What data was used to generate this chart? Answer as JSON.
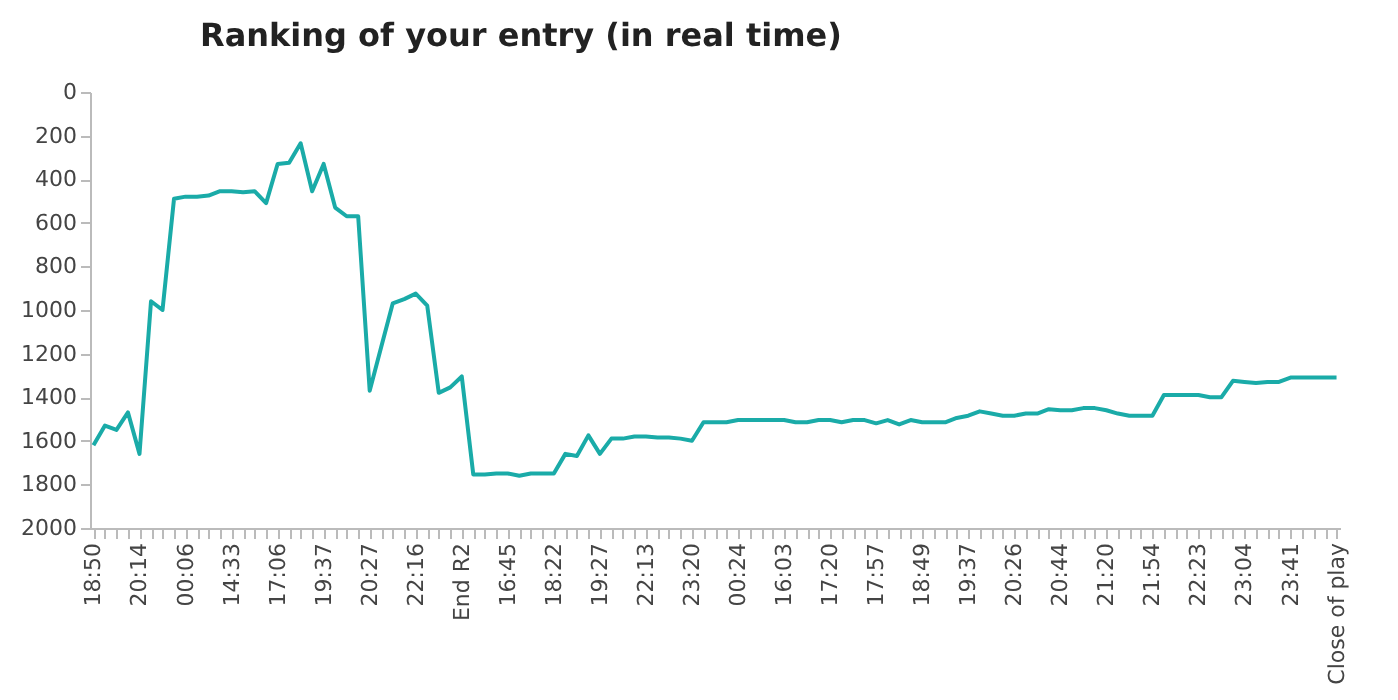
{
  "chart_data": {
    "type": "line",
    "title": "Ranking of your entry (in real time)",
    "categories": [
      "18:50",
      null,
      null,
      null,
      "20:14",
      null,
      null,
      null,
      "00:06",
      null,
      null,
      null,
      "14:33",
      null,
      null,
      null,
      "17:06",
      null,
      null,
      null,
      "19:37",
      null,
      null,
      null,
      "20:27",
      null,
      null,
      null,
      "22:16",
      null,
      null,
      null,
      "End R2",
      null,
      null,
      null,
      "16:45",
      null,
      null,
      null,
      "18:22",
      null,
      null,
      null,
      "19:27",
      null,
      null,
      null,
      "22:13",
      null,
      null,
      null,
      "23:20",
      null,
      null,
      null,
      "00:24",
      null,
      null,
      null,
      "16:03",
      null,
      null,
      null,
      "17:20",
      null,
      null,
      null,
      "17:57",
      null,
      null,
      null,
      "18:49",
      null,
      null,
      null,
      "19:37",
      null,
      null,
      null,
      "20:26",
      null,
      null,
      null,
      "20:44",
      null,
      null,
      null,
      "21:20",
      null,
      null,
      null,
      "21:54",
      null,
      null,
      null,
      "22:23",
      null,
      null,
      null,
      "23:04",
      null,
      null,
      null,
      "23:41",
      null,
      null,
      null,
      "Close of play"
    ],
    "series": [
      {
        "color": "#1aaba8",
        "values": [
          1620,
          1530,
          1550,
          1470,
          1660,
          960,
          1000,
          490,
          480,
          480,
          475,
          455,
          455,
          460,
          455,
          510,
          330,
          325,
          235,
          455,
          330,
          530,
          570,
          570,
          1370,
          1170,
          970,
          950,
          925,
          980,
          1380,
          1355,
          1305,
          1755,
          1755,
          1750,
          1750,
          1760,
          1750,
          1750,
          1750,
          1660,
          1670,
          1575,
          1660,
          1590,
          1590,
          1580,
          1580,
          1585,
          1585,
          1590,
          1600,
          1515,
          1515,
          1515,
          1505,
          1505,
          1505,
          1505,
          1505,
          1515,
          1515,
          1505,
          1505,
          1515,
          1505,
          1505,
          1520,
          1505,
          1525,
          1505,
          1515,
          1515,
          1515,
          1495,
          1485,
          1465,
          1475,
          1485,
          1485,
          1475,
          1475,
          1455,
          1460,
          1460,
          1450,
          1450,
          1460,
          1475,
          1485,
          1485,
          1485,
          1390,
          1390,
          1390,
          1390,
          1400,
          1400,
          1325,
          1330,
          1335,
          1330,
          1330,
          1310,
          1310,
          1310,
          1310,
          1310
        ]
      }
    ],
    "ylim": [
      2000,
      0
    ],
    "yticks": [
      0,
      200,
      400,
      600,
      800,
      1000,
      1200,
      1400,
      1600,
      1800,
      2000
    ],
    "grid": false,
    "legend": false
  }
}
